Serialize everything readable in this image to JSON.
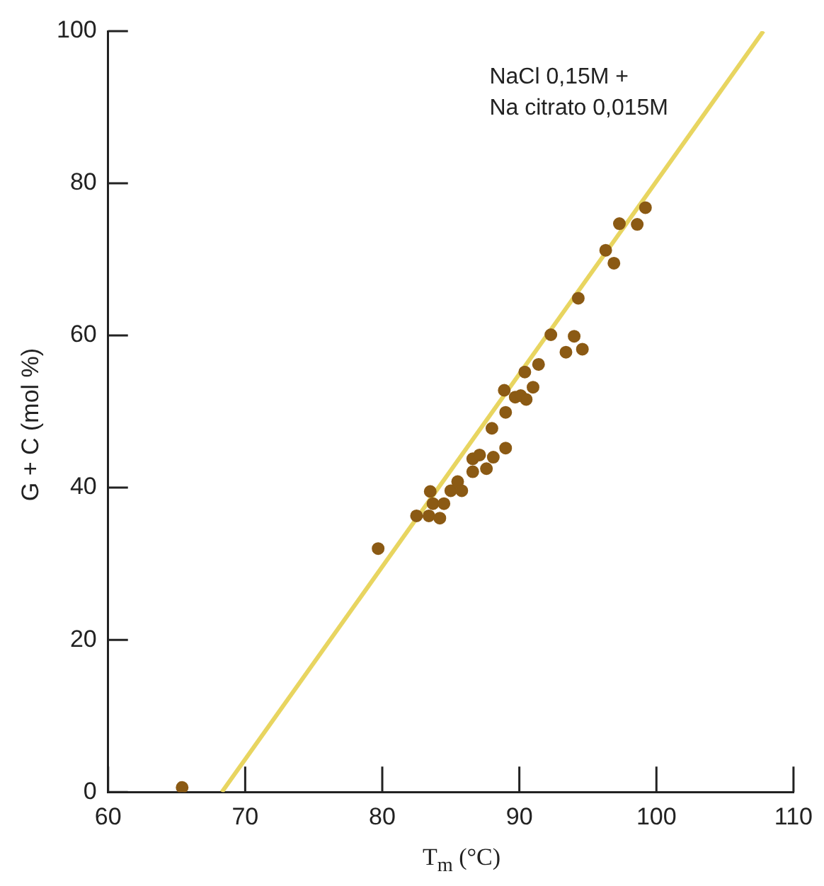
{
  "chart_data": {
    "type": "scatter",
    "xlabel": "T$_{m}$ (°C)",
    "ylabel": "G + C (mol %)",
    "annotations": [
      "NaCl 0,15M +",
      "Na citrato 0,015M"
    ],
    "xlim": [
      60,
      110
    ],
    "xticks": [
      60,
      70,
      80,
      90,
      100,
      110
    ],
    "ylim": [
      0,
      100
    ],
    "yticks": [
      0,
      20,
      40,
      60,
      80,
      100
    ],
    "grid": false,
    "legend": false,
    "marker": "circle",
    "series": [
      {
        "color": "#8b5a14",
        "x": [
          65.4,
          79.7,
          82.5,
          83.4,
          83.5,
          83.7,
          84.2,
          84.5,
          85.0,
          85.5,
          85.8,
          86.6,
          86.6,
          87.1,
          87.6,
          88.1,
          89.0,
          88.0,
          89.0,
          88.9,
          89.7,
          90.1,
          90.5,
          91.0,
          90.4,
          91.4,
          92.3,
          93.4,
          94.0,
          94.6,
          94.3,
          96.3,
          96.9,
          97.3,
          98.6,
          99.2
        ],
        "values": [
          0.6,
          32.0,
          36.3,
          36.3,
          39.5,
          37.9,
          36.0,
          37.9,
          39.6,
          40.8,
          39.6,
          42.1,
          43.8,
          44.3,
          42.5,
          44.0,
          45.2,
          47.8,
          49.9,
          52.8,
          51.9,
          52.1,
          51.6,
          53.2,
          55.2,
          56.2,
          60.1,
          57.8,
          59.9,
          58.2,
          64.9,
          71.2,
          69.5,
          74.7,
          74.6,
          76.8
        ]
      },
      {
        "type": "line",
        "marker": "none",
        "color": "#e8d560",
        "x": [
          68.3,
          107.8
        ],
        "values": [
          0,
          100
        ]
      }
    ]
  }
}
